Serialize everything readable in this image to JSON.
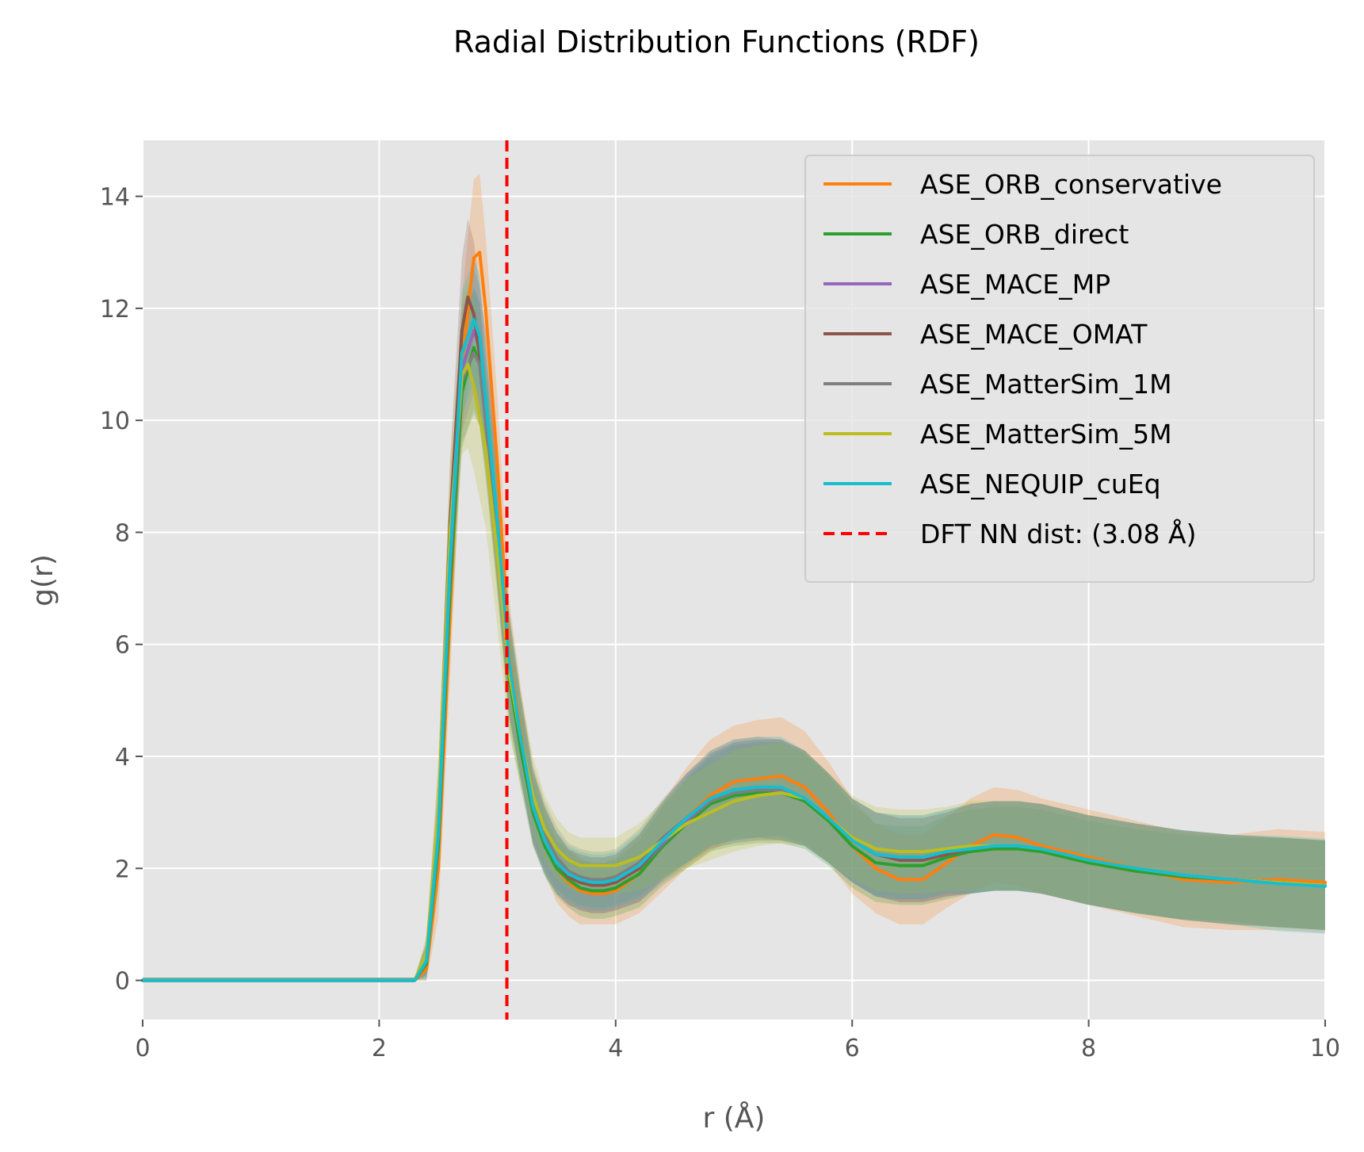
{
  "chart_data": {
    "type": "line",
    "title": "Radial Distribution Functions (RDF)",
    "xlabel": "r (Å)",
    "ylabel": "g(r)",
    "xlim": [
      0,
      10
    ],
    "ylim": [
      -0.7,
      15
    ],
    "xticks": [
      0,
      2,
      4,
      6,
      8,
      10
    ],
    "xtick_labels": [
      "0",
      "2",
      "4",
      "6",
      "8",
      "10"
    ],
    "yticks": [
      0,
      2,
      4,
      6,
      8,
      10,
      12,
      14
    ],
    "ytick_labels": [
      "0",
      "2",
      "4",
      "6",
      "8",
      "10",
      "12",
      "14"
    ],
    "grid": true,
    "legend_position": "top-right",
    "background": "#e5e5e5",
    "reference_line": {
      "label": "DFT NN dist: (3.08 Å)",
      "x": 3.08,
      "color": "#ff0000",
      "style": "dashed"
    },
    "series": [
      {
        "name": "ASE_ORB_conservative",
        "color": "#ff7f0e",
        "x": [
          0,
          2.3,
          2.4,
          2.5,
          2.6,
          2.7,
          2.8,
          2.85,
          2.9,
          3.0,
          3.1,
          3.2,
          3.3,
          3.4,
          3.5,
          3.6,
          3.7,
          3.8,
          3.9,
          4.0,
          4.2,
          4.4,
          4.6,
          4.8,
          5.0,
          5.2,
          5.4,
          5.6,
          5.8,
          6.0,
          6.2,
          6.4,
          6.6,
          6.8,
          7.0,
          7.2,
          7.4,
          7.6,
          7.8,
          8.0,
          8.4,
          8.8,
          9.2,
          9.6,
          10.0
        ],
        "y": [
          0,
          0,
          0.2,
          2.0,
          6.5,
          11.0,
          12.9,
          13.0,
          12.0,
          9.2,
          5.8,
          4.4,
          3.1,
          2.5,
          2.0,
          1.75,
          1.6,
          1.55,
          1.55,
          1.6,
          1.9,
          2.4,
          2.9,
          3.3,
          3.55,
          3.6,
          3.65,
          3.45,
          3.0,
          2.4,
          2.0,
          1.8,
          1.8,
          2.1,
          2.4,
          2.6,
          2.55,
          2.4,
          2.3,
          2.2,
          2.0,
          1.8,
          1.75,
          1.8,
          1.75
        ],
        "band": [
          0.05,
          0.05,
          0.3,
          0.9,
          1.1,
          1.2,
          1.4,
          1.4,
          1.3,
          1.2,
          1.0,
          0.8,
          0.7,
          0.6,
          0.6,
          0.6,
          0.6,
          0.55,
          0.55,
          0.6,
          0.7,
          0.8,
          0.9,
          1.0,
          1.0,
          1.05,
          1.05,
          1.0,
          0.9,
          0.85,
          0.8,
          0.8,
          0.8,
          0.8,
          0.85,
          0.85,
          0.85,
          0.85,
          0.85,
          0.85,
          0.85,
          0.85,
          0.85,
          0.9,
          0.9
        ]
      },
      {
        "name": "ASE_ORB_direct",
        "color": "#2ca02c",
        "x": [
          0,
          2.3,
          2.4,
          2.5,
          2.6,
          2.7,
          2.8,
          2.85,
          2.9,
          3.0,
          3.1,
          3.2,
          3.3,
          3.4,
          3.5,
          3.6,
          3.7,
          3.8,
          3.9,
          4.0,
          4.2,
          4.4,
          4.6,
          4.8,
          5.0,
          5.2,
          5.4,
          5.6,
          5.8,
          6.0,
          6.2,
          6.4,
          6.6,
          6.8,
          7.0,
          7.2,
          7.4,
          7.6,
          7.8,
          8.0,
          8.4,
          8.8,
          9.2,
          9.6,
          10.0
        ],
        "y": [
          0,
          0,
          0.3,
          2.4,
          7.0,
          10.5,
          11.3,
          11.0,
          10.0,
          7.9,
          5.4,
          4.1,
          3.0,
          2.4,
          2.0,
          1.8,
          1.65,
          1.6,
          1.6,
          1.65,
          1.9,
          2.4,
          2.8,
          3.15,
          3.3,
          3.35,
          3.35,
          3.2,
          2.85,
          2.4,
          2.1,
          2.05,
          2.05,
          2.2,
          2.3,
          2.35,
          2.35,
          2.3,
          2.2,
          2.1,
          1.95,
          1.85,
          1.8,
          1.75,
          1.7
        ],
        "band": [
          0.05,
          0.05,
          0.3,
          0.8,
          1.0,
          1.0,
          1.1,
          1.1,
          1.0,
          1.0,
          0.9,
          0.7,
          0.6,
          0.55,
          0.5,
          0.5,
          0.5,
          0.5,
          0.5,
          0.5,
          0.6,
          0.7,
          0.8,
          0.85,
          0.9,
          0.9,
          0.9,
          0.85,
          0.8,
          0.75,
          0.7,
          0.7,
          0.7,
          0.75,
          0.75,
          0.75,
          0.75,
          0.75,
          0.75,
          0.75,
          0.75,
          0.75,
          0.75,
          0.8,
          0.8
        ]
      },
      {
        "name": "ASE_MACE_MP",
        "color": "#9467bd",
        "x": [
          0,
          2.3,
          2.4,
          2.5,
          2.6,
          2.7,
          2.8,
          2.85,
          2.9,
          3.0,
          3.1,
          3.2,
          3.3,
          3.4,
          3.5,
          3.6,
          3.7,
          3.8,
          3.9,
          4.0,
          4.2,
          4.4,
          4.6,
          4.8,
          5.0,
          5.2,
          5.4,
          5.6,
          5.8,
          6.0,
          6.2,
          6.4,
          6.6,
          6.8,
          7.0,
          7.2,
          7.4,
          7.6,
          7.8,
          8.0,
          8.4,
          8.8,
          9.2,
          9.6,
          10.0
        ],
        "y": [
          0,
          0,
          0.35,
          2.6,
          7.4,
          10.9,
          11.6,
          11.3,
          10.3,
          8.1,
          5.6,
          4.3,
          3.1,
          2.5,
          2.1,
          1.85,
          1.75,
          1.7,
          1.7,
          1.75,
          2.0,
          2.45,
          2.85,
          3.2,
          3.35,
          3.4,
          3.4,
          3.25,
          2.9,
          2.5,
          2.25,
          2.15,
          2.15,
          2.25,
          2.35,
          2.4,
          2.4,
          2.35,
          2.25,
          2.15,
          2.0,
          1.88,
          1.8,
          1.75,
          1.7
        ],
        "band": [
          0.05,
          0.05,
          0.3,
          0.8,
          1.0,
          1.1,
          1.1,
          1.1,
          1.0,
          1.0,
          0.9,
          0.75,
          0.65,
          0.6,
          0.55,
          0.5,
          0.5,
          0.5,
          0.5,
          0.5,
          0.6,
          0.7,
          0.8,
          0.85,
          0.9,
          0.9,
          0.9,
          0.85,
          0.8,
          0.75,
          0.75,
          0.75,
          0.75,
          0.75,
          0.8,
          0.8,
          0.8,
          0.8,
          0.8,
          0.8,
          0.8,
          0.8,
          0.8,
          0.8,
          0.8
        ]
      },
      {
        "name": "ASE_MACE_OMAT",
        "color": "#8c564b",
        "x": [
          0,
          2.3,
          2.4,
          2.5,
          2.6,
          2.7,
          2.75,
          2.8,
          2.9,
          3.0,
          3.1,
          3.2,
          3.3,
          3.4,
          3.5,
          3.6,
          3.7,
          3.8,
          3.9,
          4.0,
          4.2,
          4.4,
          4.6,
          4.8,
          5.0,
          5.2,
          5.4,
          5.6,
          5.8,
          6.0,
          6.2,
          6.4,
          6.6,
          6.8,
          7.0,
          7.2,
          7.4,
          7.6,
          7.8,
          8.0,
          8.4,
          8.8,
          9.2,
          9.6,
          10.0
        ],
        "y": [
          0,
          0,
          0.4,
          2.9,
          8.2,
          11.6,
          12.2,
          11.9,
          10.4,
          8.0,
          5.6,
          4.3,
          3.1,
          2.5,
          2.1,
          1.85,
          1.75,
          1.7,
          1.7,
          1.75,
          2.0,
          2.5,
          2.9,
          3.25,
          3.4,
          3.45,
          3.4,
          3.25,
          2.9,
          2.5,
          2.25,
          2.15,
          2.15,
          2.25,
          2.35,
          2.4,
          2.4,
          2.35,
          2.25,
          2.15,
          2.0,
          1.88,
          1.8,
          1.75,
          1.7
        ],
        "band": [
          0.05,
          0.05,
          0.3,
          0.9,
          1.1,
          1.3,
          1.4,
          1.3,
          1.2,
          1.0,
          0.9,
          0.75,
          0.65,
          0.6,
          0.55,
          0.5,
          0.5,
          0.5,
          0.5,
          0.5,
          0.6,
          0.7,
          0.8,
          0.85,
          0.9,
          0.9,
          0.9,
          0.85,
          0.8,
          0.75,
          0.75,
          0.75,
          0.75,
          0.75,
          0.8,
          0.8,
          0.8,
          0.8,
          0.8,
          0.8,
          0.8,
          0.8,
          0.8,
          0.8,
          0.8
        ]
      },
      {
        "name": "ASE_MatterSim_1M",
        "color": "#7f7f7f",
        "x": [
          0,
          2.3,
          2.4,
          2.5,
          2.6,
          2.7,
          2.8,
          2.85,
          2.9,
          3.0,
          3.1,
          3.2,
          3.3,
          3.4,
          3.5,
          3.6,
          3.7,
          3.8,
          3.9,
          4.0,
          4.2,
          4.4,
          4.6,
          4.8,
          5.0,
          5.2,
          5.4,
          5.6,
          5.8,
          6.0,
          6.2,
          6.4,
          6.6,
          6.8,
          7.0,
          7.2,
          7.4,
          7.6,
          7.8,
          8.0,
          8.4,
          8.8,
          9.2,
          9.6,
          10.0
        ],
        "y": [
          0,
          0,
          0.4,
          2.7,
          7.6,
          10.7,
          11.2,
          11.0,
          10.0,
          8.0,
          5.6,
          4.3,
          3.2,
          2.6,
          2.2,
          1.95,
          1.85,
          1.8,
          1.8,
          1.85,
          2.1,
          2.55,
          2.9,
          3.2,
          3.35,
          3.4,
          3.4,
          3.25,
          2.9,
          2.5,
          2.25,
          2.2,
          2.2,
          2.3,
          2.35,
          2.4,
          2.4,
          2.35,
          2.25,
          2.15,
          2.0,
          1.88,
          1.8,
          1.75,
          1.7
        ],
        "band": [
          0.05,
          0.05,
          0.3,
          0.8,
          1.0,
          1.1,
          1.1,
          1.1,
          1.0,
          1.0,
          0.9,
          0.75,
          0.65,
          0.6,
          0.55,
          0.5,
          0.5,
          0.5,
          0.5,
          0.5,
          0.6,
          0.7,
          0.8,
          0.85,
          0.9,
          0.9,
          0.9,
          0.85,
          0.8,
          0.75,
          0.75,
          0.75,
          0.75,
          0.75,
          0.8,
          0.8,
          0.8,
          0.8,
          0.8,
          0.8,
          0.8,
          0.8,
          0.8,
          0.8,
          0.8
        ]
      },
      {
        "name": "ASE_MatterSim_5M",
        "color": "#bcbd22",
        "x": [
          0,
          2.3,
          2.4,
          2.5,
          2.6,
          2.7,
          2.75,
          2.8,
          2.9,
          3.0,
          3.1,
          3.2,
          3.3,
          3.4,
          3.5,
          3.6,
          3.7,
          3.8,
          3.9,
          4.0,
          4.2,
          4.4,
          4.6,
          4.8,
          5.0,
          5.2,
          5.4,
          5.6,
          5.8,
          6.0,
          6.2,
          6.4,
          6.6,
          6.8,
          7.0,
          7.2,
          7.4,
          7.6,
          7.8,
          8.0,
          8.4,
          8.8,
          9.2,
          9.6,
          10.0
        ],
        "y": [
          0,
          0,
          0.5,
          3.0,
          8.0,
          10.8,
          11.0,
          10.6,
          9.5,
          7.6,
          5.5,
          4.3,
          3.3,
          2.7,
          2.35,
          2.15,
          2.05,
          2.05,
          2.05,
          2.05,
          2.2,
          2.5,
          2.8,
          3.0,
          3.2,
          3.3,
          3.35,
          3.25,
          2.9,
          2.55,
          2.35,
          2.3,
          2.3,
          2.35,
          2.4,
          2.4,
          2.4,
          2.35,
          2.25,
          2.15,
          2.0,
          1.88,
          1.8,
          1.75,
          1.7
        ],
        "band": [
          0.05,
          0.05,
          0.3,
          0.9,
          1.2,
          1.4,
          1.5,
          1.5,
          1.4,
          1.3,
          1.1,
          0.85,
          0.7,
          0.6,
          0.55,
          0.5,
          0.5,
          0.5,
          0.5,
          0.5,
          0.6,
          0.7,
          0.8,
          0.85,
          0.9,
          0.9,
          0.9,
          0.85,
          0.8,
          0.75,
          0.75,
          0.75,
          0.75,
          0.75,
          0.8,
          0.8,
          0.8,
          0.8,
          0.8,
          0.8,
          0.8,
          0.8,
          0.8,
          0.8,
          0.8
        ]
      },
      {
        "name": "ASE_NEQUIP_cuEq",
        "color": "#17becf",
        "x": [
          0,
          2.3,
          2.4,
          2.5,
          2.6,
          2.7,
          2.8,
          2.85,
          2.9,
          3.0,
          3.1,
          3.2,
          3.3,
          3.4,
          3.5,
          3.6,
          3.7,
          3.8,
          3.9,
          4.0,
          4.2,
          4.4,
          4.6,
          4.8,
          5.0,
          5.2,
          5.4,
          5.6,
          5.8,
          6.0,
          6.2,
          6.4,
          6.6,
          6.8,
          7.0,
          7.2,
          7.4,
          7.6,
          7.8,
          8.0,
          8.4,
          8.8,
          9.2,
          9.6,
          10.0
        ],
        "y": [
          0,
          0,
          0.35,
          2.6,
          7.5,
          11.2,
          11.8,
          11.5,
          10.4,
          8.2,
          5.7,
          4.3,
          3.1,
          2.5,
          2.1,
          1.9,
          1.8,
          1.75,
          1.75,
          1.8,
          2.05,
          2.5,
          2.9,
          3.25,
          3.4,
          3.45,
          3.45,
          3.25,
          2.9,
          2.5,
          2.25,
          2.2,
          2.2,
          2.3,
          2.35,
          2.4,
          2.4,
          2.35,
          2.25,
          2.15,
          2.0,
          1.88,
          1.8,
          1.73,
          1.68
        ],
        "band": [
          0.05,
          0.05,
          0.3,
          0.8,
          1.0,
          1.1,
          1.1,
          1.1,
          1.0,
          1.0,
          0.9,
          0.75,
          0.65,
          0.6,
          0.55,
          0.5,
          0.5,
          0.5,
          0.5,
          0.5,
          0.6,
          0.7,
          0.8,
          0.85,
          0.9,
          0.9,
          0.9,
          0.85,
          0.8,
          0.75,
          0.75,
          0.75,
          0.75,
          0.75,
          0.8,
          0.8,
          0.8,
          0.8,
          0.8,
          0.8,
          0.8,
          0.8,
          0.8,
          0.85,
          0.85
        ]
      }
    ]
  }
}
